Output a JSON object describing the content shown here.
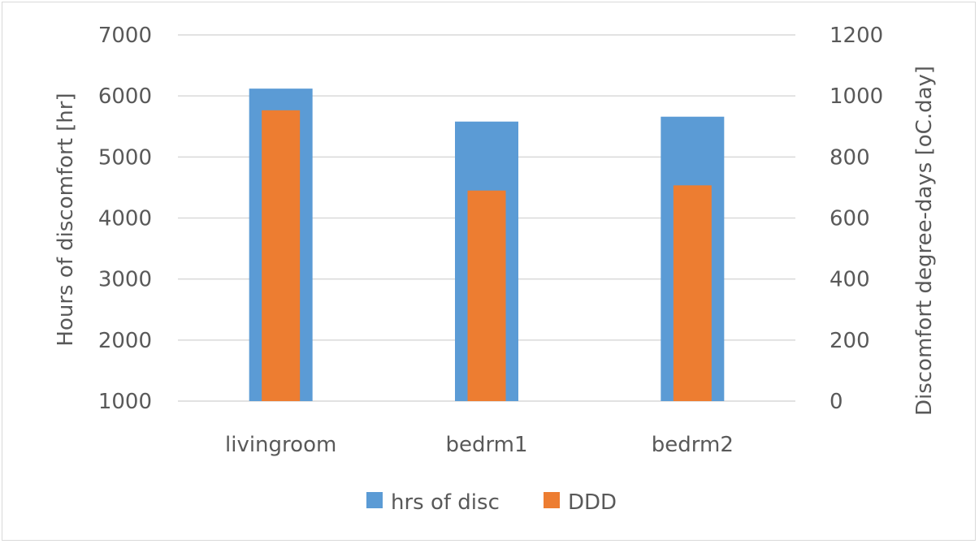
{
  "chart_data": {
    "type": "bar",
    "categories": [
      "livingroom",
      "bedrm1",
      "bedrm2"
    ],
    "series": [
      {
        "name": "hrs of disc",
        "axis": "left",
        "color": "#5b9bd5",
        "values": [
          6120,
          5580,
          5660
        ]
      },
      {
        "name": "DDD",
        "axis": "right",
        "color": "#ed7d31",
        "values": [
          953,
          690,
          707
        ]
      }
    ],
    "ylabel": "Hours of discomfort [hr]",
    "y2label": "Discomfort degree-days [oC.day]",
    "ylim": [
      1000,
      7000
    ],
    "y2lim": [
      0,
      1200
    ],
    "yticks": [
      1000,
      2000,
      3000,
      4000,
      5000,
      6000,
      7000
    ],
    "y2ticks": [
      0,
      200,
      400,
      600,
      800,
      1000,
      1200
    ],
    "grid": true,
    "legend": "bottom"
  }
}
